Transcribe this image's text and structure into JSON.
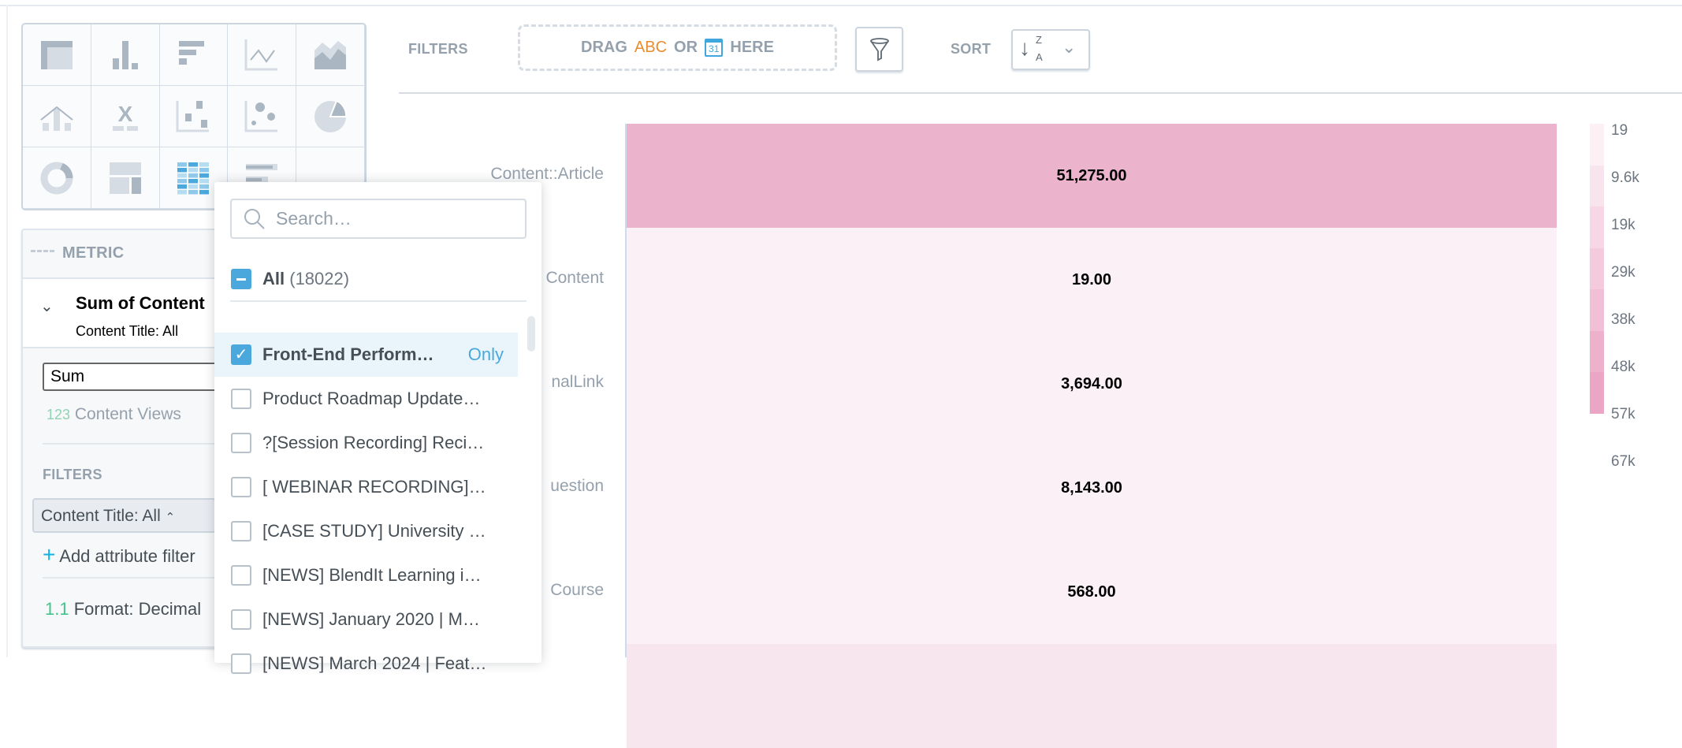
{
  "chart_types": [
    "table-icon",
    "column-chart-icon",
    "bar-chart-icon",
    "line-chart-icon",
    "area-chart-icon",
    "combo-chart-icon",
    "headline-icon",
    "scatter-plot-icon",
    "bubble-chart-icon",
    "pie-chart-icon",
    "donut-chart-icon",
    "treemap-icon",
    "heatmap-icon",
    "bullet-chart-icon"
  ],
  "toolbar": {
    "filters_label": "FILTERS",
    "drag_text": "DRAG",
    "abc": "ABC",
    "or": "OR",
    "calendar_day": "31",
    "here": "HERE",
    "sort_label": "SORT",
    "sort_z": "Z",
    "sort_a": "A"
  },
  "metric_panel": {
    "header": "METRIC",
    "title": "Sum of Content",
    "subtitle": "Content Title: All",
    "aggregation": "Sum",
    "measure_icon": "123",
    "measure": "Content Views",
    "filters_label": "FILTERS",
    "filter_chip": "Content Title: All",
    "add_filter": "Add attribute filter",
    "format_icon": "1.1",
    "format": "Format: Decimal"
  },
  "dropdown": {
    "search_placeholder": "Search…",
    "all_label": "All",
    "all_count": "(18022)",
    "only_label": "Only",
    "items": [
      {
        "label": "Front-End Perform…",
        "checked": true
      },
      {
        "label": "Product Roadmap Update…",
        "checked": false
      },
      {
        "label": "?[Session Recording] Reci…",
        "checked": false
      },
      {
        "label": "[ WEBINAR RECORDING]…",
        "checked": false
      },
      {
        "label": "[CASE STUDY] University …",
        "checked": false
      },
      {
        "label": "[NEWS] BlendIt Learning i…",
        "checked": false
      },
      {
        "label": "[NEWS] January 2020 | M…",
        "checked": false
      },
      {
        "label": "[NEWS] March 2024 | Feat…",
        "checked": false
      }
    ]
  },
  "chart_data": {
    "type": "heatmap",
    "rows": [
      "Content::Article",
      "Content",
      "nalLink",
      "uestion",
      "Course"
    ],
    "values": [
      51275,
      19,
      3694,
      8143,
      568
    ],
    "labels": [
      "51,275.00",
      "19.00",
      "3,694.00",
      "8,143.00",
      "568.00"
    ],
    "legend": {
      "ticks": [
        "19",
        "9.6k",
        "19k",
        "29k",
        "38k",
        "48k",
        "57k",
        "67k"
      ],
      "colors": [
        "#fcf0f5",
        "#f8e4ec",
        "#f7d7e5",
        "#f4cbdd",
        "#f1bfd6",
        "#edb1cc",
        "#eba5c5"
      ]
    },
    "colors": {
      "high": "#ebb3cc",
      "low": "#faf0f5"
    }
  }
}
